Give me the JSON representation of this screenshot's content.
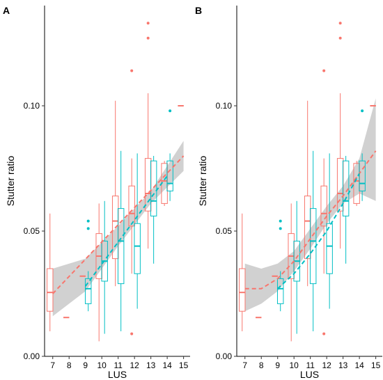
{
  "chart_data": [
    {
      "panel_label": "A",
      "type": "box",
      "xlabel": "LUS",
      "ylabel": "Stutter ratio",
      "x_ticks": [
        7,
        8,
        9,
        10,
        11,
        12,
        13,
        14,
        15
      ],
      "xlim": [
        6.5,
        15.4
      ],
      "ylim": [
        0.0,
        0.14
      ],
      "y_ticks": [
        0.0,
        0.05,
        0.1
      ],
      "y_tick_labels": [
        "0.00",
        "0.05",
        "0.10"
      ],
      "grid": false,
      "legend": "none",
      "series": [
        {
          "color": "#F8766D",
          "offset": -0.17,
          "boxes": [
            {
              "x": 7,
              "lw": 0.01,
              "q1": 0.018,
              "med": 0.0255,
              "q3": 0.035,
              "uw": 0.057,
              "out": []
            },
            {
              "x": 8,
              "lw": 0.0155,
              "q1": 0.0155,
              "med": 0.0155,
              "q3": 0.0155,
              "uw": 0.0155,
              "out": []
            },
            {
              "x": 9,
              "lw": 0.032,
              "q1": 0.032,
              "med": 0.032,
              "q3": 0.032,
              "uw": 0.032,
              "out": []
            },
            {
              "x": 10,
              "lw": 0.006,
              "q1": 0.031,
              "med": 0.04,
              "q3": 0.049,
              "uw": 0.061,
              "out": []
            },
            {
              "x": 11,
              "lw": 0.028,
              "q1": 0.039,
              "med": 0.054,
              "q3": 0.064,
              "uw": 0.102,
              "out": []
            },
            {
              "x": 12,
              "lw": 0.033,
              "q1": 0.052,
              "med": 0.057,
              "q3": 0.068,
              "uw": 0.079,
              "out": [
                0.009,
                0.114
              ]
            },
            {
              "x": 13,
              "lw": 0.043,
              "q1": 0.058,
              "med": 0.065,
              "q3": 0.079,
              "uw": 0.105,
              "out": [
                0.127,
                0.133
              ]
            },
            {
              "x": 14,
              "lw": 0.06,
              "q1": 0.061,
              "med": 0.07,
              "q3": 0.077,
              "uw": 0.078,
              "out": []
            },
            {
              "x": 15,
              "lw": 0.1,
              "q1": 0.1,
              "med": 0.1,
              "q3": 0.1,
              "uw": 0.1,
              "out": []
            }
          ]
        },
        {
          "color": "#00BFC4",
          "offset": 0.17,
          "boxes": [
            {
              "x": 9,
              "lw": 0.018,
              "q1": 0.021,
              "med": 0.027,
              "q3": 0.031,
              "uw": 0.034,
              "out": [
                0.051,
                0.054
              ]
            },
            {
              "x": 10,
              "lw": 0.009,
              "q1": 0.03,
              "med": 0.038,
              "q3": 0.046,
              "uw": 0.062,
              "out": []
            },
            {
              "x": 11,
              "lw": 0.01,
              "q1": 0.029,
              "med": 0.046,
              "q3": 0.059,
              "uw": 0.082,
              "out": []
            },
            {
              "x": 12,
              "lw": 0.019,
              "q1": 0.033,
              "med": 0.044,
              "q3": 0.053,
              "uw": 0.081,
              "out": []
            },
            {
              "x": 13,
              "lw": 0.037,
              "q1": 0.056,
              "med": 0.062,
              "q3": 0.078,
              "uw": 0.08,
              "out": []
            },
            {
              "x": 14,
              "lw": 0.062,
              "q1": 0.066,
              "med": 0.069,
              "q3": 0.078,
              "uw": 0.081,
              "out": [
                0.098
              ]
            }
          ]
        }
      ],
      "fit_lines": [
        {
          "color": "#F8766D",
          "x": [
            7,
            15
          ],
          "y": [
            0.025,
            0.08
          ]
        },
        {
          "color": "#00BFC4",
          "x": [
            9,
            14
          ],
          "y": [
            0.028,
            0.072
          ]
        }
      ],
      "confidence_band": {
        "x": [
          7,
          9,
          11,
          13,
          15
        ],
        "lower": [
          0.016,
          0.026,
          0.044,
          0.061,
          0.074
        ],
        "upper": [
          0.035,
          0.039,
          0.052,
          0.066,
          0.086
        ]
      }
    },
    {
      "panel_label": "B",
      "type": "box",
      "xlabel": "LUS",
      "ylabel": "Stutter ratio",
      "x_ticks": [
        7,
        8,
        9,
        10,
        11,
        12,
        13,
        14,
        15
      ],
      "xlim": [
        6.5,
        15.4
      ],
      "ylim": [
        0.0,
        0.14
      ],
      "y_ticks": [
        0.0,
        0.05,
        0.1
      ],
      "y_tick_labels": [
        "0.00",
        "0.05",
        "0.10"
      ],
      "grid": false,
      "legend": "none",
      "series": [
        {
          "color": "#F8766D",
          "offset": -0.17,
          "boxes": [
            {
              "x": 7,
              "lw": 0.01,
              "q1": 0.018,
              "med": 0.0255,
              "q3": 0.035,
              "uw": 0.057,
              "out": []
            },
            {
              "x": 8,
              "lw": 0.0155,
              "q1": 0.0155,
              "med": 0.0155,
              "q3": 0.0155,
              "uw": 0.0155,
              "out": []
            },
            {
              "x": 9,
              "lw": 0.032,
              "q1": 0.032,
              "med": 0.032,
              "q3": 0.032,
              "uw": 0.032,
              "out": []
            },
            {
              "x": 10,
              "lw": 0.006,
              "q1": 0.031,
              "med": 0.04,
              "q3": 0.049,
              "uw": 0.061,
              "out": []
            },
            {
              "x": 11,
              "lw": 0.028,
              "q1": 0.039,
              "med": 0.054,
              "q3": 0.064,
              "uw": 0.102,
              "out": []
            },
            {
              "x": 12,
              "lw": 0.033,
              "q1": 0.052,
              "med": 0.057,
              "q3": 0.068,
              "uw": 0.079,
              "out": [
                0.009,
                0.114
              ]
            },
            {
              "x": 13,
              "lw": 0.043,
              "q1": 0.058,
              "med": 0.065,
              "q3": 0.079,
              "uw": 0.105,
              "out": [
                0.127,
                0.133
              ]
            },
            {
              "x": 14,
              "lw": 0.06,
              "q1": 0.061,
              "med": 0.07,
              "q3": 0.077,
              "uw": 0.078,
              "out": []
            },
            {
              "x": 15,
              "lw": 0.1,
              "q1": 0.1,
              "med": 0.1,
              "q3": 0.1,
              "uw": 0.1,
              "out": []
            }
          ]
        },
        {
          "color": "#00BFC4",
          "offset": 0.17,
          "boxes": [
            {
              "x": 9,
              "lw": 0.018,
              "q1": 0.021,
              "med": 0.027,
              "q3": 0.031,
              "uw": 0.034,
              "out": [
                0.051,
                0.054
              ]
            },
            {
              "x": 10,
              "lw": 0.009,
              "q1": 0.03,
              "med": 0.038,
              "q3": 0.046,
              "uw": 0.062,
              "out": []
            },
            {
              "x": 11,
              "lw": 0.01,
              "q1": 0.029,
              "med": 0.046,
              "q3": 0.059,
              "uw": 0.082,
              "out": []
            },
            {
              "x": 12,
              "lw": 0.019,
              "q1": 0.033,
              "med": 0.044,
              "q3": 0.053,
              "uw": 0.081,
              "out": []
            },
            {
              "x": 13,
              "lw": 0.037,
              "q1": 0.056,
              "med": 0.062,
              "q3": 0.078,
              "uw": 0.08,
              "out": []
            },
            {
              "x": 14,
              "lw": 0.062,
              "q1": 0.066,
              "med": 0.069,
              "q3": 0.078,
              "uw": 0.081,
              "out": [
                0.098
              ]
            }
          ]
        }
      ],
      "fit_lines": [
        {
          "color": "#F8766D",
          "x": [
            7,
            8,
            9,
            10,
            11,
            12,
            13,
            14,
            15
          ],
          "y": [
            0.027,
            0.027,
            0.031,
            0.038,
            0.047,
            0.056,
            0.064,
            0.073,
            0.082
          ]
        },
        {
          "color": "#00BFC4",
          "x": [
            9,
            10,
            11,
            12,
            13,
            14
          ],
          "y": [
            0.027,
            0.033,
            0.041,
            0.05,
            0.061,
            0.073
          ]
        }
      ],
      "confidence_band": {
        "x": [
          7,
          8,
          9,
          10,
          11,
          12,
          13,
          14,
          15
        ],
        "lower": [
          0.018,
          0.021,
          0.026,
          0.034,
          0.043,
          0.053,
          0.061,
          0.065,
          0.062
        ],
        "upper": [
          0.037,
          0.035,
          0.037,
          0.042,
          0.051,
          0.06,
          0.068,
          0.079,
          0.103
        ]
      }
    }
  ]
}
